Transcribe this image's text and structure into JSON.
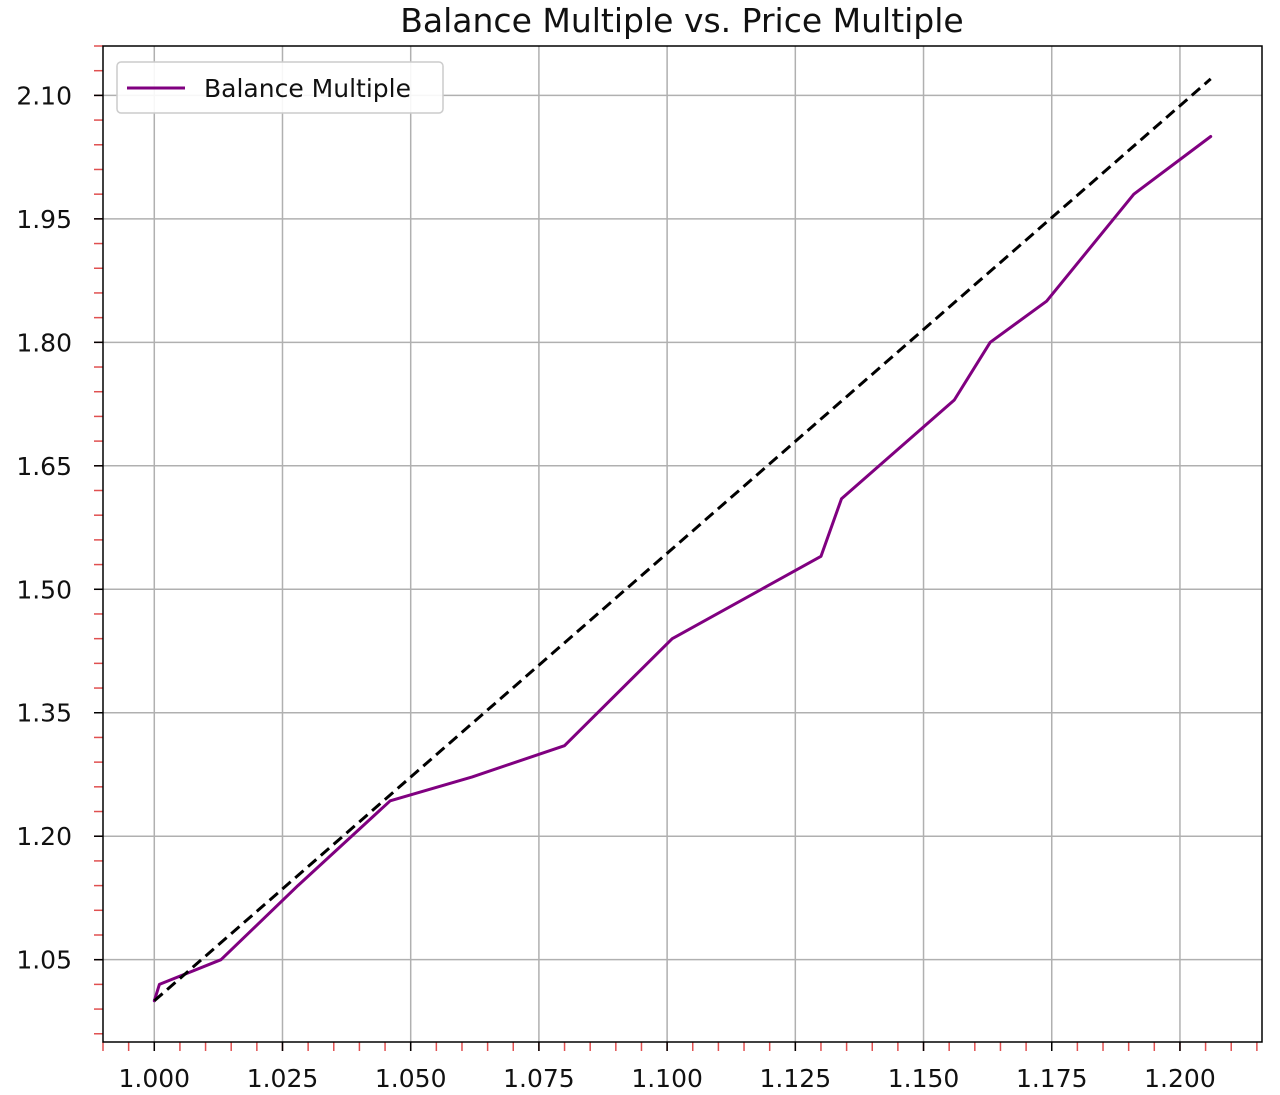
{
  "chart_data": {
    "type": "line",
    "title": "Balance Multiple vs. Price Multiple",
    "xlabel": "",
    "ylabel": "",
    "xlim": [
      0.99,
      1.216
    ],
    "ylim": [
      0.95,
      2.16
    ],
    "x_ticks": [
      "1.000",
      "1.025",
      "1.050",
      "1.075",
      "1.100",
      "1.125",
      "1.150",
      "1.175",
      "1.200"
    ],
    "x_tick_values": [
      1.0,
      1.025,
      1.05,
      1.075,
      1.1,
      1.125,
      1.15,
      1.175,
      1.2
    ],
    "y_ticks": [
      "1.05",
      "1.20",
      "1.35",
      "1.50",
      "1.65",
      "1.80",
      "1.95",
      "2.10"
    ],
    "y_tick_values": [
      1.05,
      1.2,
      1.35,
      1.5,
      1.65,
      1.8,
      1.95,
      2.1
    ],
    "grid": true,
    "legend_position": "top-left",
    "series": [
      {
        "name": "Balance Multiple",
        "color": "#800080",
        "style": "solid",
        "x": [
          1.0,
          1.001,
          1.013,
          1.028,
          1.046,
          1.062,
          1.08,
          1.101,
          1.13,
          1.134,
          1.156,
          1.163,
          1.174,
          1.191,
          1.206
        ],
        "y": [
          1.0,
          1.02,
          1.05,
          1.14,
          1.243,
          1.272,
          1.31,
          1.44,
          1.54,
          1.61,
          1.73,
          1.8,
          1.85,
          1.98,
          2.05
        ]
      },
      {
        "name": "",
        "color": "#000000",
        "style": "dashed",
        "x": [
          1.0,
          1.206
        ],
        "y": [
          1.0,
          2.12
        ]
      }
    ]
  }
}
